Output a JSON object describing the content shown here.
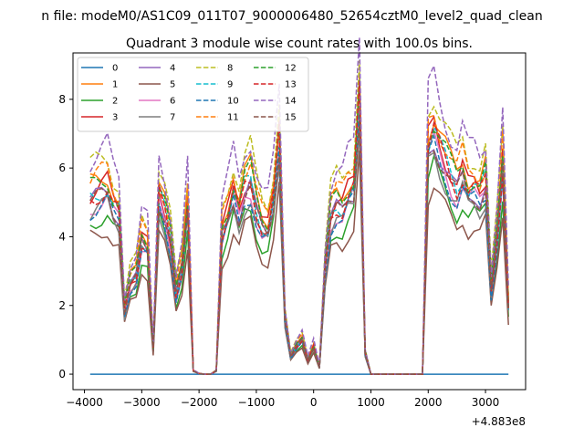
{
  "header": {
    "suptitle": "n file: modeM0/AS1C09_011T07_9000006480_52654cztM0_level2_quad_clean",
    "title": "Quadrant 3 module wise count rates with 100.0s bins."
  },
  "chart_data": {
    "type": "line",
    "title": "Quadrant 3 module wise count rates with 100.0s bins.",
    "x_offset_label": "+4.883e8",
    "xlim": [
      -4200,
      3700
    ],
    "ylim": [
      -0.45,
      9.35
    ],
    "xticks": [
      -4000,
      -3000,
      -2000,
      -1000,
      0,
      1000,
      2000,
      3000
    ],
    "yticks": [
      0,
      2,
      4,
      6,
      8
    ],
    "xtick_labels": [
      "−4000",
      "−3000",
      "−2000",
      "−1000",
      "0",
      "1000",
      "2000",
      "3000"
    ],
    "ytick_labels": [
      "0",
      "2",
      "4",
      "6",
      "8"
    ],
    "legend_position": "upper-left",
    "legend_columns": 4,
    "x": [
      -3900,
      -3800,
      -3700,
      -3600,
      -3500,
      -3400,
      -3300,
      -3200,
      -3100,
      -3000,
      -2900,
      -2800,
      -2700,
      -2600,
      -2500,
      -2400,
      -2300,
      -2200,
      -2100,
      -2000,
      -1900,
      -1800,
      -1700,
      -1600,
      -1500,
      -1400,
      -1300,
      -1200,
      -1100,
      -1000,
      -900,
      -800,
      -700,
      -600,
      -500,
      -400,
      -300,
      -200,
      -100,
      0,
      100,
      200,
      300,
      400,
      500,
      600,
      700,
      800,
      900,
      1000,
      1100,
      1200,
      1300,
      1400,
      1500,
      1600,
      1700,
      1800,
      1900,
      2000,
      2100,
      2200,
      2300,
      2400,
      2500,
      2600,
      2700,
      2800,
      2900,
      3000,
      3100,
      3200,
      3300,
      3400
    ],
    "profile": [
      5.0,
      5.1,
      5.2,
      5.3,
      4.8,
      4.6,
      1.8,
      2.6,
      2.8,
      3.8,
      3.6,
      0.7,
      5.1,
      4.6,
      3.8,
      2.3,
      3.0,
      4.8,
      0.1,
      0.02,
      0.0,
      0.0,
      0.1,
      4.0,
      4.5,
      5.2,
      4.6,
      5.3,
      5.5,
      4.7,
      4.2,
      4.1,
      5.0,
      6.8,
      1.6,
      0.5,
      0.8,
      1.0,
      0.4,
      0.8,
      0.2,
      3.0,
      4.5,
      4.8,
      4.7,
      5.1,
      5.3,
      7.9,
      0.6,
      0.0,
      0.0,
      0.0,
      0.0,
      0.0,
      0.0,
      0.0,
      0.0,
      0.0,
      0.0,
      6.5,
      6.9,
      6.4,
      6.0,
      5.6,
      5.3,
      5.7,
      5.2,
      5.3,
      5.1,
      5.5,
      2.4,
      3.9,
      6.0,
      1.9
    ],
    "series": [
      {
        "name": "0",
        "color": "#1f77b4",
        "dash": "solid",
        "scale": 0.0
      },
      {
        "name": "1",
        "color": "#ff7f0e",
        "dash": "solid",
        "scale": 1.1
      },
      {
        "name": "2",
        "color": "#2ca02c",
        "dash": "solid",
        "scale": 0.88
      },
      {
        "name": "3",
        "color": "#d62728",
        "dash": "solid",
        "scale": 1.05
      },
      {
        "name": "4",
        "color": "#9467bd",
        "dash": "solid",
        "scale": 1.0
      },
      {
        "name": "5",
        "color": "#8c564b",
        "dash": "solid",
        "scale": 0.8
      },
      {
        "name": "6",
        "color": "#e377c2",
        "dash": "solid",
        "scale": 0.97
      },
      {
        "name": "7",
        "color": "#7f7f7f",
        "dash": "solid",
        "scale": 0.93
      },
      {
        "name": "8",
        "color": "#bcbd22",
        "dash": "dashed",
        "scale": 1.2
      },
      {
        "name": "9",
        "color": "#17becf",
        "dash": "dashed",
        "scale": 1.03
      },
      {
        "name": "10",
        "color": "#1f77b4",
        "dash": "dashed",
        "scale": 0.95
      },
      {
        "name": "11",
        "color": "#ff7f0e",
        "dash": "dashed",
        "scale": 1.12
      },
      {
        "name": "12",
        "color": "#2ca02c",
        "dash": "dashed",
        "scale": 1.08
      },
      {
        "name": "13",
        "color": "#d62728",
        "dash": "dashed",
        "scale": 1.02
      },
      {
        "name": "14",
        "color": "#9467bd",
        "dash": "dashed",
        "scale": 1.25
      },
      {
        "name": "15",
        "color": "#8c564b",
        "dash": "dashed",
        "scale": 0.99
      }
    ]
  }
}
